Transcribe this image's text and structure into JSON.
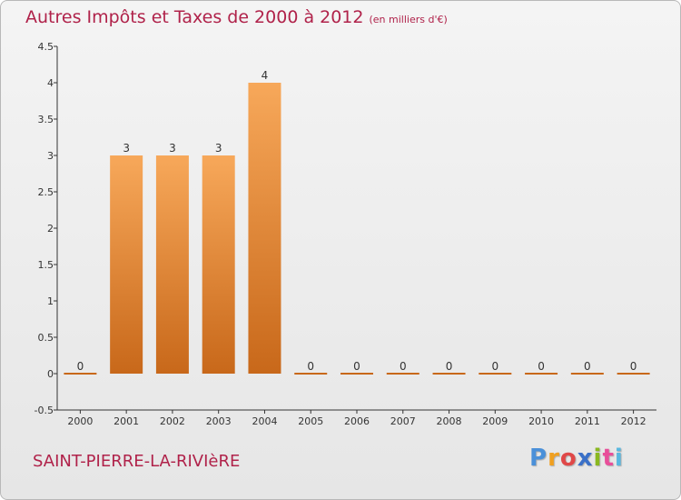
{
  "title": "Autres Impôts et Taxes de 2000 à 2012",
  "subtitle": "(en milliers d'€)",
  "commune": "SAINT-PIERRE-LA-RIVIèRE",
  "logo": {
    "letters": [
      "P",
      "r",
      "o",
      "x",
      "i",
      "t",
      "i"
    ],
    "colors": [
      "#4a90d9",
      "#f0a020",
      "#e04848",
      "#3a70c8",
      "#8ab820",
      "#e84f9a",
      "#58b8e0"
    ]
  },
  "colors": {
    "title": "#b0224a",
    "bar_top": "#f7a85a",
    "bar_bottom": "#c8681a",
    "axis": "#333333"
  },
  "chart_data": {
    "type": "bar",
    "categories": [
      "2000",
      "2001",
      "2002",
      "2003",
      "2004",
      "2005",
      "2006",
      "2007",
      "2008",
      "2009",
      "2010",
      "2011",
      "2012"
    ],
    "values": [
      0,
      3,
      3,
      3,
      4,
      0,
      0,
      0,
      0,
      0,
      0,
      0,
      0
    ],
    "data_labels": [
      "0",
      "3",
      "3",
      "3",
      "4",
      "0",
      "0",
      "0",
      "0",
      "0",
      "0",
      "0",
      "0"
    ],
    "y_ticks": [
      "-0.5",
      "0",
      "0.5",
      "1",
      "1.5",
      "2",
      "2.5",
      "3",
      "3.5",
      "4",
      "4.5"
    ],
    "ylim": [
      -0.5,
      4.5
    ],
    "grid": false,
    "xlabel": "",
    "ylabel": ""
  }
}
